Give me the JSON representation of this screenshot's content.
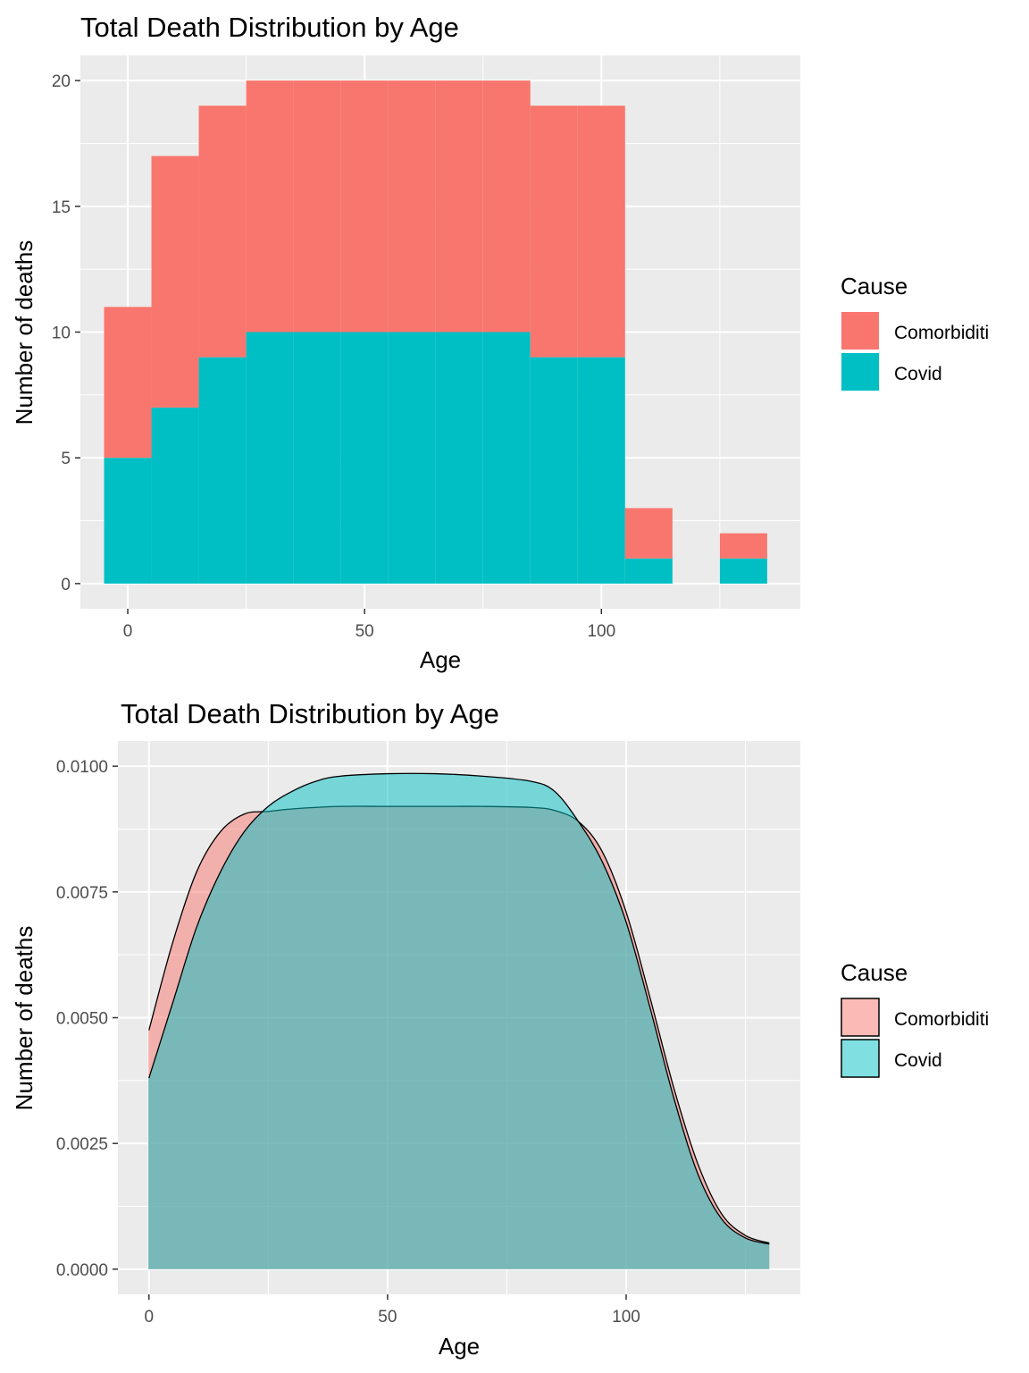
{
  "chart_data": [
    {
      "type": "bar",
      "subtype": "stacked-histogram",
      "title": "Total Death Distribution by Age",
      "xlabel": "Age",
      "ylabel": "Number of deaths",
      "xlim": [
        -10,
        142
      ],
      "ylim": [
        -1,
        21
      ],
      "xticks": [
        0,
        50,
        100
      ],
      "xtick_labels": [
        "0",
        "50",
        "100"
      ],
      "yticks": [
        0,
        5,
        10,
        15,
        20
      ],
      "ytick_labels": [
        "0",
        "5",
        "10",
        "15",
        "20"
      ],
      "bin_width": 10,
      "bin_centers": [
        0,
        10,
        20,
        30,
        40,
        50,
        60,
        70,
        80,
        90,
        100,
        110,
        120,
        130
      ],
      "series": [
        {
          "name": "Covid",
          "color": "#00BFC4",
          "values": [
            5,
            7,
            9,
            10,
            10,
            10,
            10,
            10,
            10,
            9,
            9,
            1,
            0,
            1
          ]
        },
        {
          "name": "Comorbiditi",
          "color": "#F8766D",
          "values": [
            6,
            10,
            10,
            10,
            10,
            10,
            10,
            10,
            10,
            10,
            10,
            2,
            0,
            1
          ]
        }
      ],
      "legend": {
        "title": "Cause",
        "position": "right",
        "entries": [
          "Comorbiditi",
          "Covid"
        ]
      }
    },
    {
      "type": "area",
      "subtype": "density",
      "title": "Total Death Distribution by Age",
      "xlabel": "Age",
      "ylabel": "Number of deaths",
      "xlim": [
        -6.5,
        136.5
      ],
      "ylim": [
        -0.0005,
        0.0105
      ],
      "xticks": [
        0,
        50,
        100
      ],
      "xtick_labels": [
        "0",
        "50",
        "100"
      ],
      "yticks": [
        0,
        0.0025,
        0.005,
        0.0075,
        0.01
      ],
      "ytick_labels": [
        "0.0000",
        "0.0025",
        "0.0050",
        "0.0075",
        "0.0100"
      ],
      "series": [
        {
          "name": "Comorbiditi",
          "color": "#F8766D",
          "x": [
            0,
            5,
            10,
            15,
            20,
            25,
            30,
            40,
            50,
            60,
            70,
            80,
            85,
            90,
            95,
            100,
            105,
            110,
            115,
            120,
            125,
            130
          ],
          "y": [
            0.00475,
            0.0065,
            0.0079,
            0.0087,
            0.00905,
            0.0091,
            0.00915,
            0.0092,
            0.0092,
            0.0092,
            0.0092,
            0.00918,
            0.00912,
            0.0089,
            0.0083,
            0.0071,
            0.0054,
            0.0036,
            0.0021,
            0.0011,
            0.00067,
            0.00052
          ]
        },
        {
          "name": "Covid",
          "color": "#00BFC4",
          "x": [
            0,
            5,
            10,
            15,
            20,
            25,
            30,
            35,
            40,
            50,
            60,
            70,
            80,
            85,
            90,
            95,
            100,
            105,
            110,
            115,
            120,
            125,
            130
          ],
          "y": [
            0.0038,
            0.0053,
            0.0068,
            0.0079,
            0.0087,
            0.0092,
            0.0095,
            0.0097,
            0.0098,
            0.00985,
            0.00985,
            0.0098,
            0.0097,
            0.0095,
            0.0089,
            0.0081,
            0.0069,
            0.0052,
            0.0034,
            0.0019,
            0.001,
            0.00062,
            0.0005
          ]
        }
      ],
      "legend": {
        "title": "Cause",
        "position": "right",
        "entries": [
          "Comorbiditi",
          "Covid"
        ]
      }
    }
  ]
}
